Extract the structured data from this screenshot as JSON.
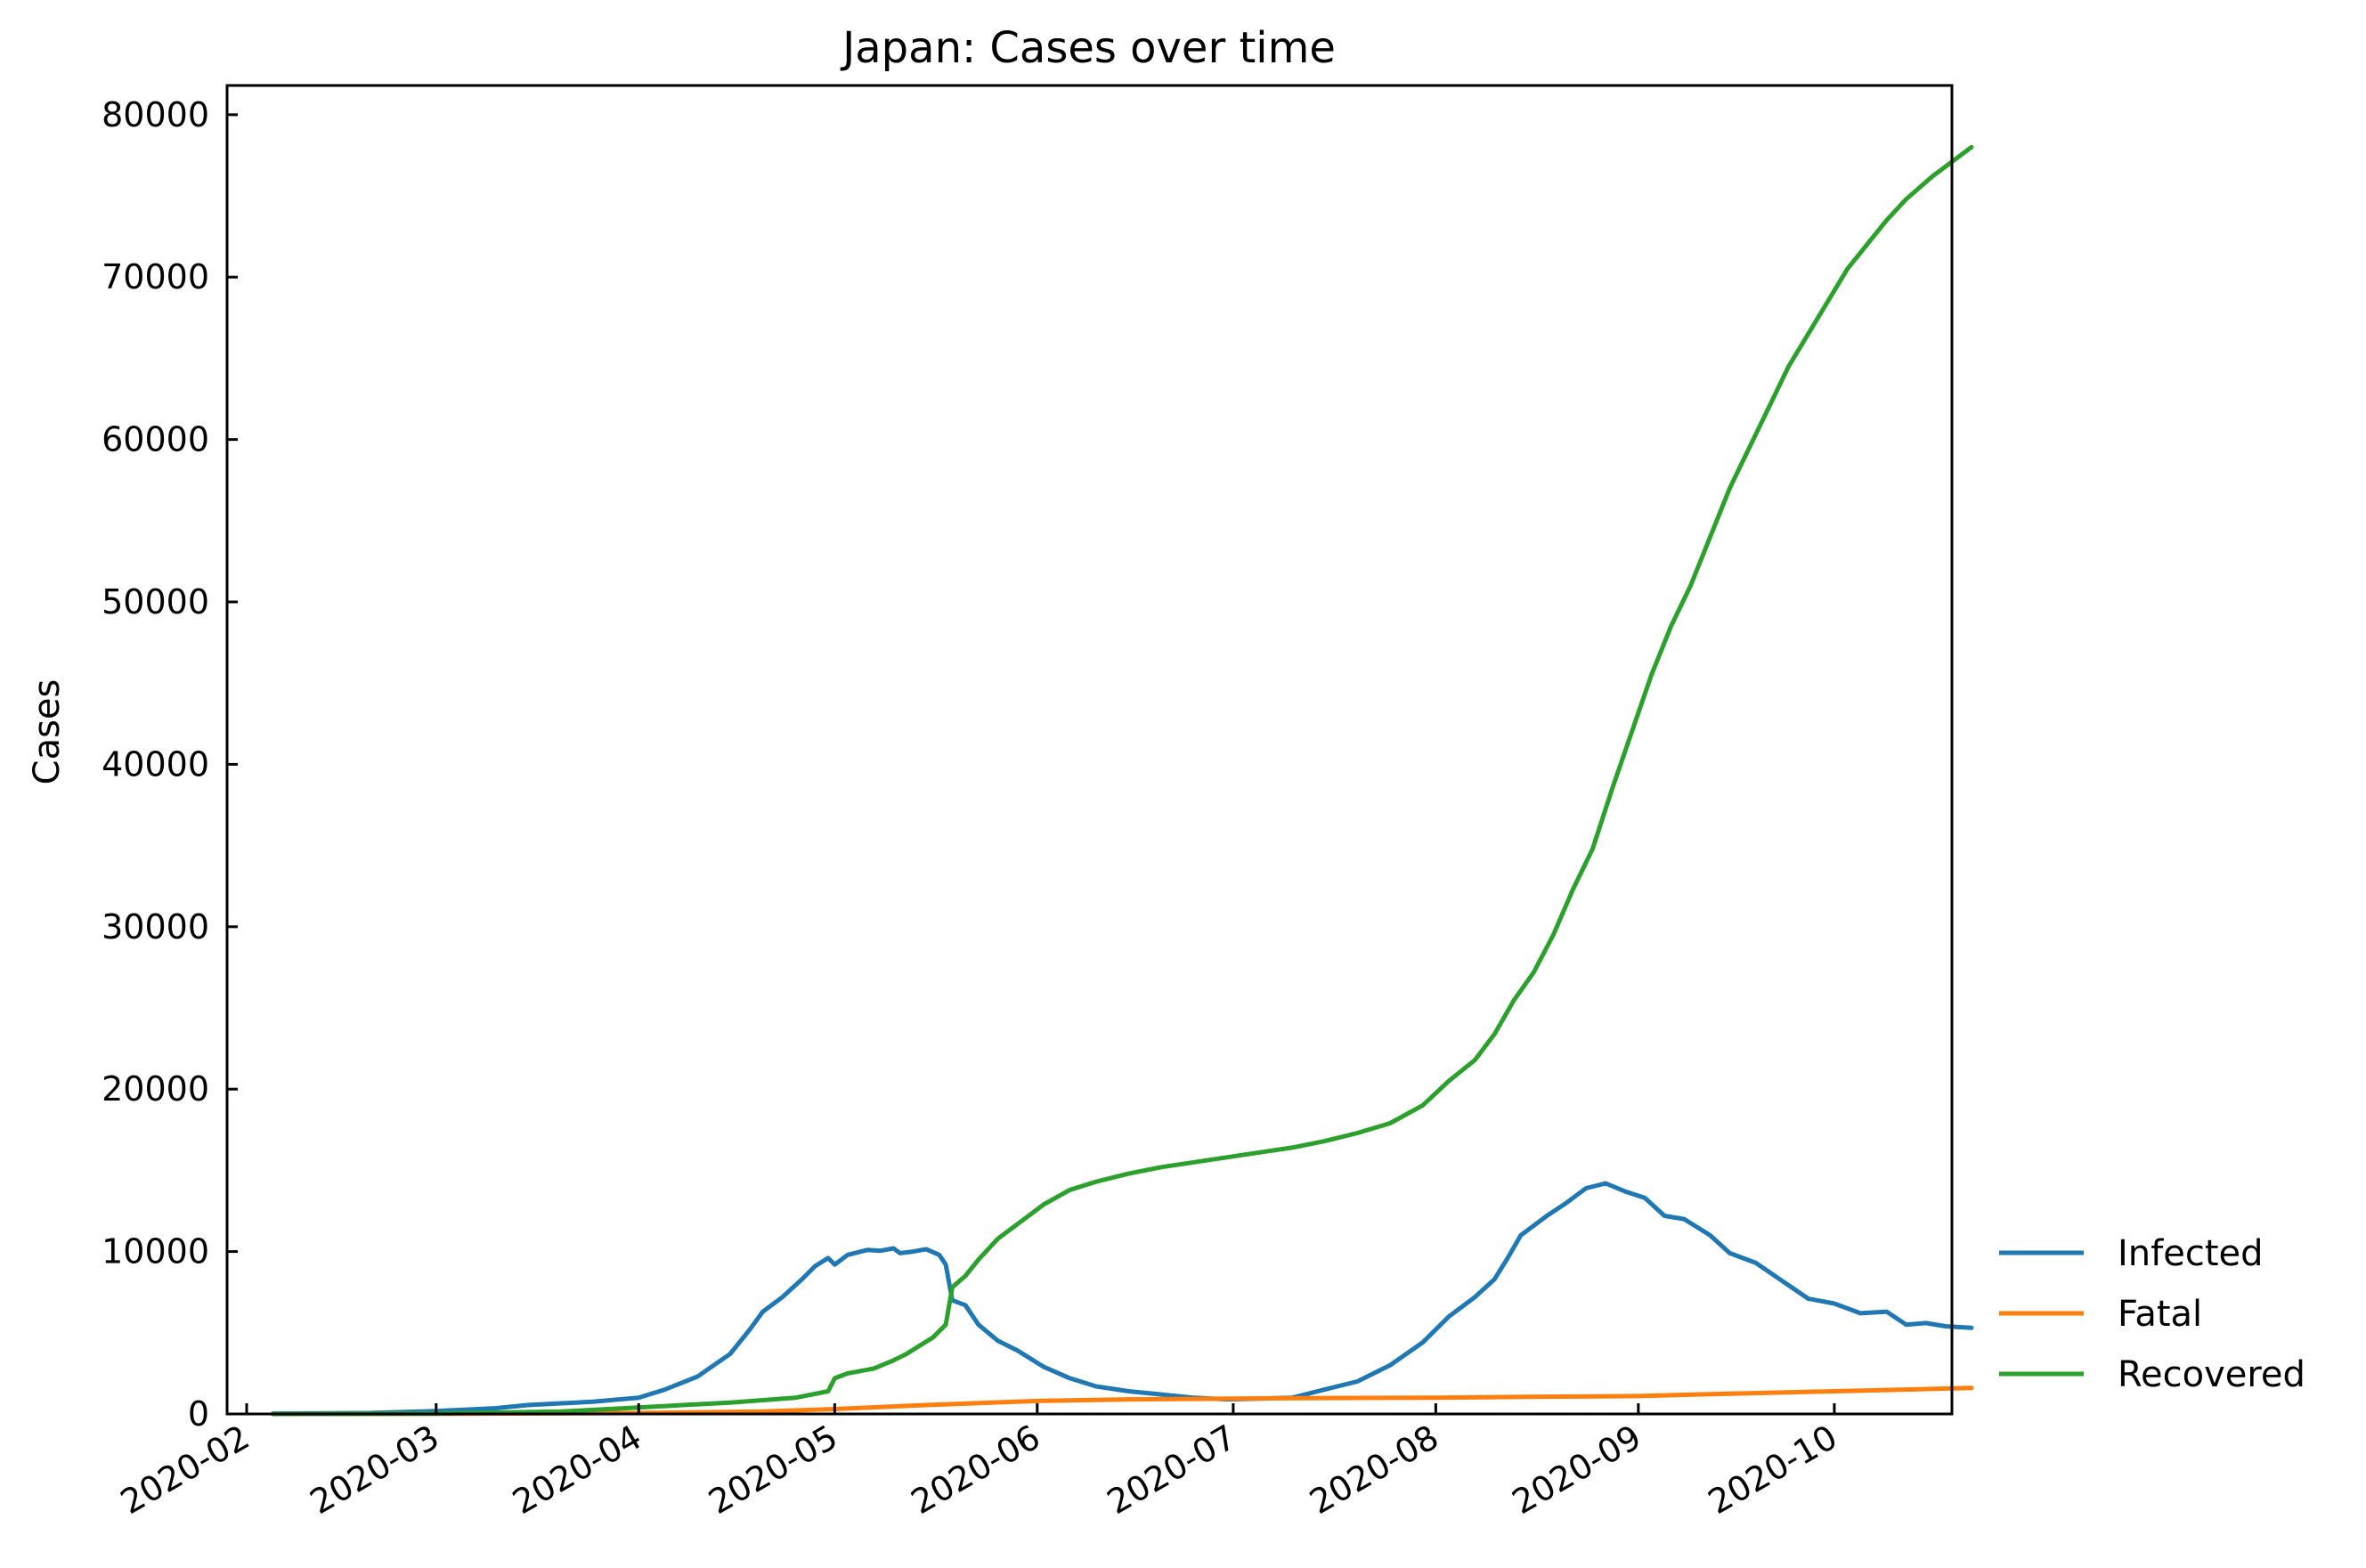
{
  "chart_data": {
    "type": "line",
    "title": "Japan: Cases over time",
    "xlabel": "",
    "ylabel": "Cases",
    "x_ticks": [
      "2020-02",
      "2020-03",
      "2020-04",
      "2020-05",
      "2020-06",
      "2020-07",
      "2020-08",
      "2020-09",
      "2020-10"
    ],
    "y_ticks": [
      0,
      10000,
      20000,
      30000,
      40000,
      50000,
      60000,
      70000,
      80000
    ],
    "xlim": [
      "2020-01-29",
      "2020-10-19"
    ],
    "ylim": [
      0,
      81800
    ],
    "grid": false,
    "legend_position": "outside-right-bottom",
    "series": [
      {
        "name": "Infected",
        "color": "#1f77b4",
        "points": [
          [
            "2020-02-05",
            20
          ],
          [
            "2020-02-20",
            60
          ],
          [
            "2020-03-01",
            180
          ],
          [
            "2020-03-10",
            350
          ],
          [
            "2020-03-15",
            550
          ],
          [
            "2020-03-25",
            750
          ],
          [
            "2020-04-01",
            1000
          ],
          [
            "2020-04-05",
            1500
          ],
          [
            "2020-04-10",
            2300
          ],
          [
            "2020-04-15",
            3700
          ],
          [
            "2020-04-18",
            5200
          ],
          [
            "2020-04-20",
            6300
          ],
          [
            "2020-04-23",
            7200
          ],
          [
            "2020-04-26",
            8300
          ],
          [
            "2020-04-28",
            9100
          ],
          [
            "2020-04-30",
            9600
          ],
          [
            "2020-05-01",
            9200
          ],
          [
            "2020-05-03",
            9800
          ],
          [
            "2020-05-06",
            10100
          ],
          [
            "2020-05-08",
            10050
          ],
          [
            "2020-05-10",
            10200
          ],
          [
            "2020-05-11",
            9900
          ],
          [
            "2020-05-13",
            10000
          ],
          [
            "2020-05-15",
            10150
          ],
          [
            "2020-05-17",
            9800
          ],
          [
            "2020-05-18",
            9200
          ],
          [
            "2020-05-19",
            7000
          ],
          [
            "2020-05-21",
            6700
          ],
          [
            "2020-05-23",
            5500
          ],
          [
            "2020-05-26",
            4500
          ],
          [
            "2020-05-29",
            3900
          ],
          [
            "2020-06-02",
            2900
          ],
          [
            "2020-06-06",
            2200
          ],
          [
            "2020-06-10",
            1700
          ],
          [
            "2020-06-15",
            1400
          ],
          [
            "2020-06-20",
            1200
          ],
          [
            "2020-06-25",
            1000
          ],
          [
            "2020-06-30",
            900
          ],
          [
            "2020-07-05",
            950
          ],
          [
            "2020-07-10",
            1000
          ],
          [
            "2020-07-15",
            1500
          ],
          [
            "2020-07-20",
            2000
          ],
          [
            "2020-07-25",
            3000
          ],
          [
            "2020-07-30",
            4400
          ],
          [
            "2020-08-03",
            6000
          ],
          [
            "2020-08-07",
            7200
          ],
          [
            "2020-08-10",
            8300
          ],
          [
            "2020-08-12",
            9600
          ],
          [
            "2020-08-14",
            11000
          ],
          [
            "2020-08-18",
            12200
          ],
          [
            "2020-08-21",
            13000
          ],
          [
            "2020-08-24",
            13900
          ],
          [
            "2020-08-27",
            14200
          ],
          [
            "2020-08-30",
            13700
          ],
          [
            "2020-09-02",
            13300
          ],
          [
            "2020-09-05",
            12200
          ],
          [
            "2020-09-08",
            12000
          ],
          [
            "2020-09-12",
            11000
          ],
          [
            "2020-09-15",
            9900
          ],
          [
            "2020-09-19",
            9300
          ],
          [
            "2020-09-23",
            8200
          ],
          [
            "2020-09-27",
            7100
          ],
          [
            "2020-10-01",
            6800
          ],
          [
            "2020-10-05",
            6200
          ],
          [
            "2020-10-09",
            6300
          ],
          [
            "2020-10-12",
            5500
          ],
          [
            "2020-10-15",
            5600
          ],
          [
            "2020-10-18",
            5400
          ],
          [
            "2020-10-22",
            5300
          ]
        ]
      },
      {
        "name": "Fatal",
        "color": "#ff7f0e",
        "points": [
          [
            "2020-02-05",
            0
          ],
          [
            "2020-03-01",
            10
          ],
          [
            "2020-04-01",
            60
          ],
          [
            "2020-04-20",
            150
          ],
          [
            "2020-05-01",
            300
          ],
          [
            "2020-05-15",
            550
          ],
          [
            "2020-06-01",
            800
          ],
          [
            "2020-06-15",
            900
          ],
          [
            "2020-07-01",
            950
          ],
          [
            "2020-07-15",
            980
          ],
          [
            "2020-08-01",
            1000
          ],
          [
            "2020-08-15",
            1050
          ],
          [
            "2020-09-01",
            1100
          ],
          [
            "2020-09-15",
            1250
          ],
          [
            "2020-10-01",
            1400
          ],
          [
            "2020-10-22",
            1600
          ]
        ]
      },
      {
        "name": "Recovered",
        "color": "#2ca02c",
        "points": [
          [
            "2020-02-05",
            0
          ],
          [
            "2020-03-01",
            20
          ],
          [
            "2020-03-20",
            150
          ],
          [
            "2020-04-01",
            400
          ],
          [
            "2020-04-15",
            700
          ],
          [
            "2020-04-25",
            1000
          ],
          [
            "2020-04-30",
            1400
          ],
          [
            "2020-05-01",
            2200
          ],
          [
            "2020-05-03",
            2500
          ],
          [
            "2020-05-07",
            2800
          ],
          [
            "2020-05-10",
            3300
          ],
          [
            "2020-05-12",
            3700
          ],
          [
            "2020-05-14",
            4200
          ],
          [
            "2020-05-16",
            4700
          ],
          [
            "2020-05-18",
            5500
          ],
          [
            "2020-05-19",
            7800
          ],
          [
            "2020-05-21",
            8500
          ],
          [
            "2020-05-23",
            9500
          ],
          [
            "2020-05-26",
            10800
          ],
          [
            "2020-05-29",
            11700
          ],
          [
            "2020-06-02",
            12900
          ],
          [
            "2020-06-06",
            13800
          ],
          [
            "2020-06-10",
            14300
          ],
          [
            "2020-06-15",
            14800
          ],
          [
            "2020-06-20",
            15200
          ],
          [
            "2020-06-25",
            15500
          ],
          [
            "2020-06-30",
            15800
          ],
          [
            "2020-07-05",
            16100
          ],
          [
            "2020-07-10",
            16400
          ],
          [
            "2020-07-15",
            16800
          ],
          [
            "2020-07-20",
            17300
          ],
          [
            "2020-07-25",
            17900
          ],
          [
            "2020-07-30",
            19000
          ],
          [
            "2020-08-03",
            20500
          ],
          [
            "2020-08-07",
            21800
          ],
          [
            "2020-08-10",
            23400
          ],
          [
            "2020-08-13",
            25500
          ],
          [
            "2020-08-16",
            27200
          ],
          [
            "2020-08-19",
            29500
          ],
          [
            "2020-08-22",
            32300
          ],
          [
            "2020-08-25",
            34800
          ],
          [
            "2020-08-28",
            38500
          ],
          [
            "2020-08-31",
            42000
          ],
          [
            "2020-09-03",
            45500
          ],
          [
            "2020-09-06",
            48500
          ],
          [
            "2020-09-09",
            51000
          ],
          [
            "2020-09-12",
            54000
          ],
          [
            "2020-09-15",
            57000
          ],
          [
            "2020-09-18",
            59500
          ],
          [
            "2020-09-21",
            62000
          ],
          [
            "2020-09-24",
            64500
          ],
          [
            "2020-09-27",
            66500
          ],
          [
            "2020-09-30",
            68500
          ],
          [
            "2020-10-03",
            70500
          ],
          [
            "2020-10-06",
            72000
          ],
          [
            "2020-10-09",
            73500
          ],
          [
            "2020-10-12",
            74800
          ],
          [
            "2020-10-16",
            76200
          ],
          [
            "2020-10-22",
            78000
          ]
        ]
      }
    ]
  }
}
